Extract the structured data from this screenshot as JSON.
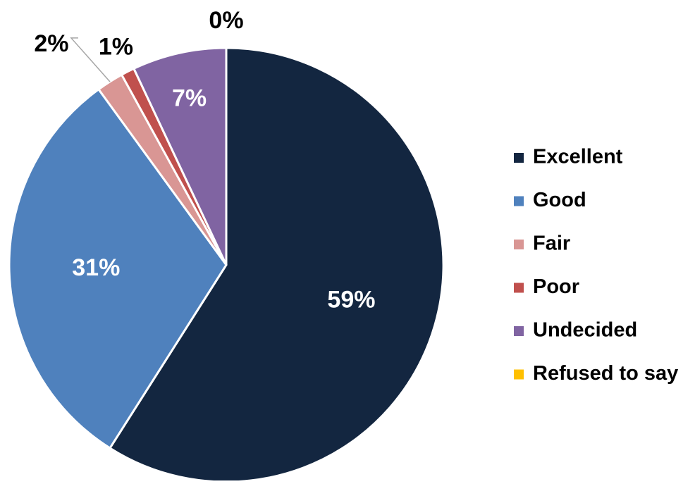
{
  "chart_data": {
    "type": "pie",
    "categories": [
      "Excellent",
      "Good",
      "Fair",
      "Poor",
      "Undecided",
      "Refused to say"
    ],
    "values": [
      59,
      31,
      2,
      1,
      7,
      0
    ],
    "value_labels": [
      "59%",
      "31%",
      "2%",
      "1%",
      "7%",
      "0%"
    ],
    "colors": [
      "#132640",
      "#4f81bd",
      "#d99694",
      "#c0504d",
      "#8064a2",
      "#ffc000"
    ],
    "legend": "right"
  }
}
